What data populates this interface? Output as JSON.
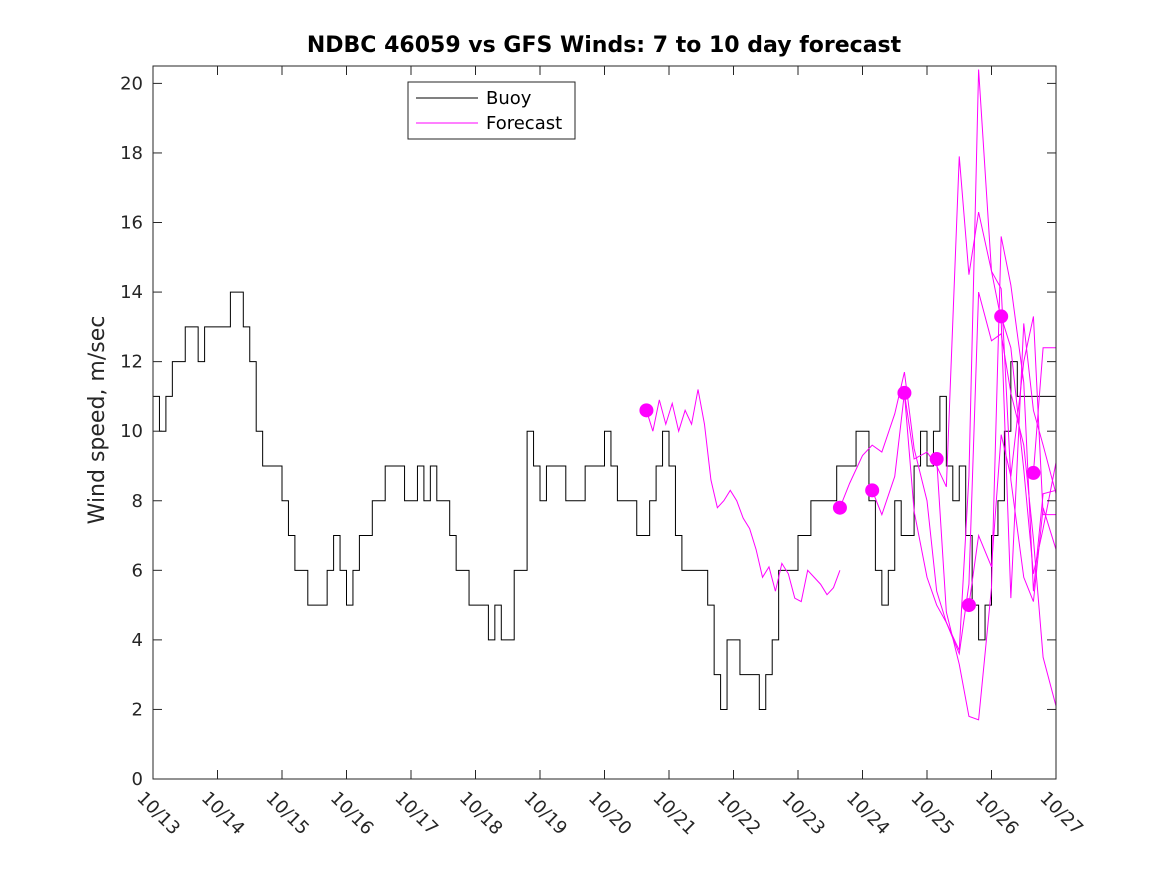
{
  "chart_data": {
    "type": "line",
    "title": "NDBC 46059 vs GFS Winds: 7 to 10 day forecast",
    "xlabel": "",
    "ylabel": "Wind speed, m/sec",
    "xlim": [
      0,
      14
    ],
    "ylim": [
      0,
      20.5
    ],
    "x_tick_labels": [
      "10/13",
      "10/14",
      "10/15",
      "10/16",
      "10/17",
      "10/18",
      "10/19",
      "10/20",
      "10/21",
      "10/22",
      "10/23",
      "10/24",
      "10/25",
      "10/26",
      "10/27"
    ],
    "y_ticks": [
      0,
      2,
      4,
      6,
      8,
      10,
      12,
      14,
      16,
      18,
      20
    ],
    "grid": false,
    "legend_position": "top-left",
    "legend": [
      "Buoy",
      "Forecast"
    ],
    "colors": {
      "buoy": "#000000",
      "forecast": "#ff00ff"
    },
    "buoy": {
      "name": "Buoy",
      "x": [
        0,
        0.1,
        0.2,
        0.3,
        0.4,
        0.5,
        0.6,
        0.7,
        0.8,
        0.9,
        1.0,
        1.1,
        1.2,
        1.3,
        1.4,
        1.5,
        1.6,
        1.7,
        1.8,
        1.9,
        2.0,
        2.1,
        2.2,
        2.3,
        2.4,
        2.5,
        2.6,
        2.7,
        2.8,
        2.9,
        3.0,
        3.1,
        3.2,
        3.3,
        3.4,
        3.5,
        3.6,
        3.7,
        3.8,
        3.9,
        4.0,
        4.1,
        4.2,
        4.3,
        4.4,
        4.5,
        4.6,
        4.7,
        4.8,
        4.9,
        5.0,
        5.1,
        5.2,
        5.3,
        5.4,
        5.5,
        5.6,
        5.7,
        5.8,
        5.9,
        6.0,
        6.1,
        6.2,
        6.3,
        6.4,
        6.5,
        6.6,
        6.7,
        6.8,
        6.9,
        7.0,
        7.1,
        7.2,
        7.3,
        7.4,
        7.5,
        7.6,
        7.7,
        7.8,
        7.9,
        8.0,
        8.1,
        8.2,
        8.3,
        8.4,
        8.5,
        8.6,
        8.7,
        8.8,
        8.9,
        9.0,
        9.1,
        9.2,
        9.3,
        9.4,
        9.5,
        9.6,
        9.7,
        9.8,
        9.9,
        10.0,
        10.1,
        10.2,
        10.3,
        10.4,
        10.5,
        10.6,
        10.7,
        10.8,
        10.9,
        11.0,
        11.1,
        11.2,
        11.3,
        11.4,
        11.5,
        11.6,
        11.7,
        11.8,
        11.9,
        12.0,
        12.1,
        12.2,
        12.3,
        12.4,
        12.5,
        12.6,
        12.7,
        12.8,
        12.9,
        13.0,
        13.1,
        13.2,
        13.3,
        13.4,
        13.5,
        13.6,
        13.7,
        13.8,
        13.9,
        14.0
      ],
      "y": [
        11,
        10,
        11,
        12,
        12,
        13,
        13,
        12,
        13,
        13,
        13,
        13,
        14,
        14,
        13,
        12,
        10,
        9,
        9,
        9,
        8,
        7,
        6,
        6,
        5,
        5,
        5,
        6,
        7,
        6,
        5,
        6,
        7,
        7,
        8,
        8,
        9,
        9,
        9,
        8,
        8,
        9,
        8,
        9,
        8,
        8,
        7,
        6,
        6,
        5,
        5,
        5,
        4,
        5,
        4,
        4,
        6,
        6,
        10,
        9,
        8,
        9,
        9,
        9,
        8,
        8,
        8,
        9,
        9,
        9,
        10,
        9,
        8,
        8,
        8,
        7,
        7,
        8,
        9,
        10,
        9,
        7,
        6,
        6,
        6,
        6,
        5,
        3,
        2,
        4,
        4,
        3,
        3,
        3,
        2,
        3,
        4,
        6,
        6,
        6,
        7,
        7,
        8,
        8,
        8,
        8,
        9,
        9,
        9,
        10,
        10,
        8,
        6,
        5,
        6,
        8,
        7,
        7,
        9,
        10,
        9,
        10,
        11,
        9,
        8,
        9,
        7,
        5,
        4,
        5,
        7,
        8,
        10,
        12,
        11,
        11,
        11,
        11,
        11,
        11,
        11
      ]
    },
    "forecast": [
      {
        "name": "",
        "x": [
          7.65,
          7.75,
          7.85,
          7.95,
          8.05,
          8.15,
          8.25,
          8.35,
          8.45,
          8.55,
          8.65,
          8.75,
          8.85,
          8.95,
          9.05,
          9.15,
          9.25,
          9.35,
          9.45,
          9.55,
          9.65,
          9.75,
          9.85,
          9.95,
          10.05,
          10.15,
          10.25,
          10.35,
          10.45,
          10.55,
          10.65
        ],
        "y": [
          10.6,
          10.0,
          10.9,
          10.2,
          10.8,
          10.0,
          10.6,
          10.2,
          11.2,
          10.2,
          8.6,
          7.8,
          8.0,
          8.3,
          8.0,
          7.5,
          7.2,
          6.6,
          5.8,
          6.1,
          5.4,
          6.2,
          5.9,
          5.2,
          5.1,
          6.0,
          5.8,
          5.6,
          5.3,
          5.5,
          6.0
        ]
      },
      {
        "name": "",
        "x": [
          10.65,
          10.8,
          11.0,
          11.15,
          11.3,
          11.5,
          11.65,
          11.8,
          12.0,
          12.15,
          12.3,
          12.5,
          12.65,
          12.8,
          13.0,
          13.15,
          13.3,
          13.5,
          13.65,
          13.8,
          14.0
        ],
        "y": [
          7.8,
          8.5,
          9.3,
          9.6,
          9.4,
          10.5,
          11.7,
          9.5,
          8.0,
          5.4,
          4.5,
          3.6,
          5.6,
          14.0,
          12.6,
          12.8,
          11.1,
          9.6,
          6.9,
          3.5,
          2.1
        ]
      },
      {
        "name": "",
        "x": [
          11.15,
          11.3,
          11.5,
          11.65,
          11.8,
          12.0,
          12.15,
          12.3,
          12.5,
          12.65,
          12.8,
          13.0,
          13.15,
          13.3,
          13.5,
          13.65,
          13.8,
          14.0
        ],
        "y": [
          8.3,
          7.6,
          8.7,
          11.1,
          9.2,
          9.4,
          9.0,
          8.4,
          17.9,
          14.5,
          16.3,
          14.6,
          14.1,
          8.6,
          5.8,
          5.1,
          7.8,
          6.6
        ]
      },
      {
        "name": "",
        "x": [
          11.65,
          11.8,
          12.0,
          12.15,
          12.3,
          12.5,
          12.65,
          12.8,
          13.0,
          13.15,
          13.3,
          13.5,
          13.65,
          13.8,
          14.0
        ],
        "y": [
          11.1,
          7.7,
          5.8,
          5.0,
          4.5,
          3.7,
          8.7,
          20.4,
          14.6,
          13.2,
          5.2,
          13.1,
          10.6,
          9.6,
          8.2
        ]
      },
      {
        "name": "",
        "x": [
          12.15,
          12.3,
          12.5,
          12.65,
          12.8,
          13.0,
          13.15,
          13.3,
          13.5,
          13.65,
          13.8,
          14.0
        ],
        "y": [
          9.2,
          4.8,
          3.3,
          1.8,
          1.7,
          5.5,
          15.6,
          14.2,
          11.4,
          5.4,
          8.2,
          8.3
        ]
      },
      {
        "name": "",
        "x": [
          12.65,
          12.8,
          13.0,
          13.15,
          13.3,
          13.5,
          13.65,
          13.8,
          14.0
        ],
        "y": [
          5.0,
          7.0,
          6.1,
          9.9,
          8.7,
          12.0,
          13.3,
          7.6,
          7.6
        ]
      },
      {
        "name": "",
        "x": [
          13.15,
          13.3,
          13.5,
          13.65,
          13.8,
          14.0
        ],
        "y": [
          13.3,
          12.4,
          8.9,
          5.9,
          7.2,
          9.1
        ]
      },
      {
        "name": "",
        "x": [
          13.65,
          13.8,
          14.0
        ],
        "y": [
          8.8,
          12.4,
          12.4
        ]
      }
    ],
    "forecast_markers": {
      "x": [
        7.65,
        10.65,
        11.15,
        11.65,
        12.15,
        12.65,
        13.15,
        13.65
      ],
      "y": [
        10.6,
        7.8,
        8.3,
        11.1,
        9.2,
        5.0,
        13.3,
        8.8
      ]
    }
  }
}
